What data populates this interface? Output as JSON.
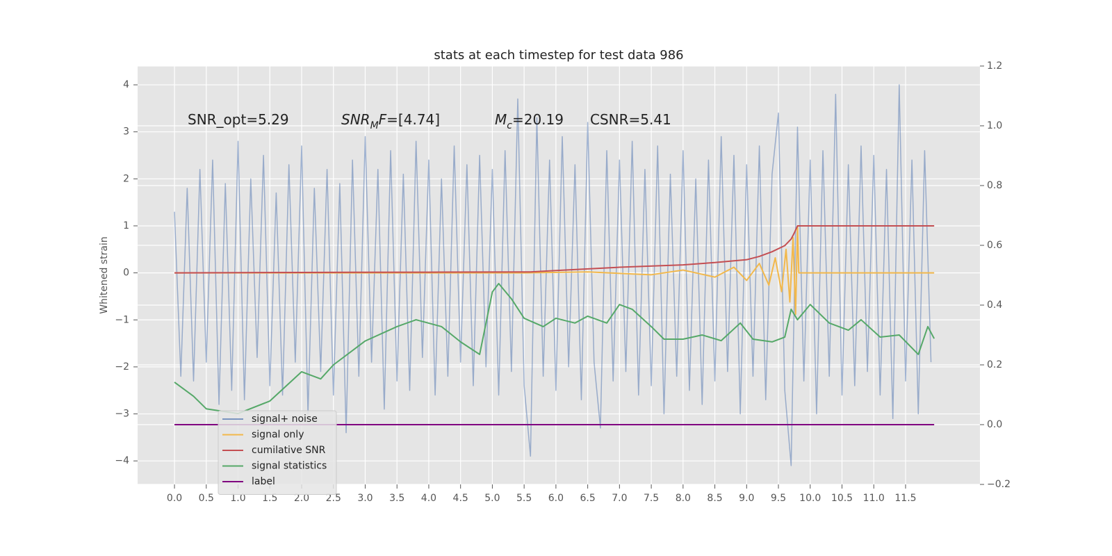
{
  "chart_data": {
    "type": "line",
    "title": "stats at each timestep for test data 986",
    "ylabel": "Whitened strain",
    "xlim": [
      -0.58,
      12.67
    ],
    "ylim": [
      -4.5,
      4.4
    ],
    "y2lim": [
      -0.2,
      1.2
    ],
    "grid": true,
    "legend": "lower left",
    "xticks": [
      {
        "value": 0,
        "label": "0.0"
      },
      0.5,
      {
        "value": 1,
        "label": "1.0"
      },
      1.5,
      {
        "value": 2,
        "label": "2.0"
      },
      2.5,
      {
        "value": 3,
        "label": "3.0"
      },
      3.5,
      {
        "value": 4,
        "label": "4.0"
      },
      4.5,
      {
        "value": 5,
        "label": "5.0"
      },
      5.5,
      {
        "value": 6,
        "label": "6.0"
      },
      6.5,
      {
        "value": 7,
        "label": "7.0"
      },
      7.5,
      {
        "value": 8,
        "label": "8.0"
      },
      8.5,
      {
        "value": 9,
        "label": "9.0"
      },
      9.5,
      {
        "value": 10,
        "label": "10.0"
      },
      10.5,
      {
        "value": 11,
        "label": "11.0"
      },
      11.5
    ],
    "yticks": [
      4,
      3,
      2,
      1,
      0,
      {
        "value": -1,
        "label": "−1"
      },
      {
        "value": -2,
        "label": "−2"
      },
      {
        "value": -3,
        "label": "−3"
      },
      {
        "value": -4,
        "label": "−4"
      }
    ],
    "y2ticks": [
      1.2,
      {
        "value": 1,
        "label": "1.0"
      },
      0.8,
      0.6,
      0.4,
      0.2,
      {
        "value": 0,
        "label": "0.0"
      },
      {
        "value": -0.2,
        "label": "−0.2"
      }
    ],
    "annotations": [
      {
        "parts": [
          {
            "text": "SNR_opt=5.29"
          }
        ]
      },
      {
        "parts": [
          {
            "text": "SNR",
            "italic": true
          },
          {
            "text": "M",
            "italic": true,
            "sub": true
          },
          {
            "text": "F",
            "italic": true
          },
          {
            "text": "=[4.74]"
          }
        ]
      },
      {
        "parts": [
          {
            "text": "M",
            "italic": true
          },
          {
            "text": "c",
            "italic": true,
            "sub": true
          },
          {
            "text": "=20.19"
          }
        ]
      },
      {
        "parts": [
          {
            "text": "CSNR=5.41"
          }
        ]
      }
    ],
    "series": [
      {
        "name": "signal+ noise",
        "color": "#4c72b0",
        "opacity": 0.5,
        "x": [
          0,
          0.1,
          0.2,
          0.3,
          0.4,
          0.5,
          0.6,
          0.7,
          0.8,
          0.9,
          1,
          1.1,
          1.2,
          1.3,
          1.4,
          1.5,
          1.6,
          1.7,
          1.8,
          1.9,
          2,
          2.1,
          2.2,
          2.3,
          2.4,
          2.5,
          2.6,
          2.7,
          2.8,
          2.9,
          3,
          3.1,
          3.2,
          3.3,
          3.4,
          3.5,
          3.6,
          3.7,
          3.8,
          3.9,
          4,
          4.1,
          4.2,
          4.3,
          4.4,
          4.5,
          4.6,
          4.7,
          4.8,
          4.9,
          5,
          5.1,
          5.2,
          5.3,
          5.4,
          5.5,
          5.6,
          5.7,
          5.8,
          5.9,
          6,
          6.1,
          6.2,
          6.3,
          6.4,
          6.5,
          6.6,
          6.7,
          6.8,
          6.9,
          7,
          7.1,
          7.2,
          7.3,
          7.4,
          7.5,
          7.6,
          7.7,
          7.8,
          7.9,
          8,
          8.1,
          8.2,
          8.3,
          8.4,
          8.5,
          8.6,
          8.7,
          8.8,
          8.9,
          9,
          9.1,
          9.2,
          9.3,
          9.4,
          9.5,
          9.6,
          9.7,
          9.8,
          9.9,
          10,
          10.1,
          10.2,
          10.3,
          10.4,
          10.5,
          10.6,
          10.7,
          10.8,
          10.9,
          11,
          11.1,
          11.2,
          11.3,
          11.4,
          11.5,
          11.6,
          11.7,
          11.8,
          11.9
        ],
        "values": [
          1.3,
          -2.2,
          1.8,
          -2.3,
          2.2,
          -1.9,
          2.4,
          -2.8,
          1.9,
          -2.5,
          2.8,
          -2.7,
          2.0,
          -1.8,
          2.5,
          -2.4,
          1.7,
          -2.6,
          2.3,
          -1.9,
          2.7,
          -3.0,
          1.8,
          -2.1,
          2.2,
          -2.6,
          1.9,
          -3.4,
          2.4,
          -2.2,
          2.9,
          -1.9,
          2.2,
          -2.9,
          2.6,
          -2.3,
          2.1,
          -2.5,
          2.8,
          -1.8,
          2.4,
          -2.6,
          2.0,
          -2.2,
          2.7,
          -1.9,
          2.3,
          -2.4,
          2.5,
          -2.0,
          2.2,
          -2.6,
          2.6,
          -2.1,
          3.7,
          -2.4,
          -3.9,
          3.3,
          -2.2,
          2.4,
          -2.5,
          2.9,
          -2.0,
          2.3,
          -2.7,
          3.2,
          -1.9,
          -3.3,
          2.6,
          -2.3,
          2.4,
          -2.1,
          2.8,
          -2.6,
          2.2,
          -2.4,
          2.7,
          -3.0,
          2.1,
          -2.2,
          2.6,
          -2.5,
          2.0,
          -2.8,
          2.4,
          -2.3,
          2.9,
          -2.1,
          2.5,
          -3.0,
          2.3,
          -2.2,
          2.7,
          -2.7,
          2.1,
          3.4,
          -2.5,
          -4.1,
          3.1,
          -2.3,
          2.4,
          -3.0,
          2.6,
          -2.2,
          3.8,
          -2.6,
          2.3,
          -2.4,
          2.7,
          -2.1,
          2.5,
          -2.6,
          2.2,
          -3.1,
          4.0,
          -2.3,
          2.4,
          -3.0,
          2.6,
          -1.9
        ]
      },
      {
        "name": "signal only",
        "color": "#f2b84b",
        "opacity": 1,
        "x": [
          0,
          5.5,
          6.5,
          7.5,
          8.0,
          8.5,
          8.8,
          9.0,
          9.2,
          9.35,
          9.45,
          9.55,
          9.62,
          9.68,
          9.73,
          9.77,
          9.8,
          9.82,
          11.95
        ],
        "values": [
          0,
          0,
          0.02,
          -0.04,
          0.06,
          -0.09,
          0.12,
          -0.16,
          0.2,
          -0.26,
          0.32,
          -0.4,
          0.5,
          -0.62,
          0.75,
          -0.88,
          1.0,
          0,
          0
        ]
      },
      {
        "name": "cumilative SNR",
        "color": "#c44e52",
        "opacity": 1,
        "x": [
          0,
          2,
          4,
          5.6,
          6,
          7,
          8,
          8.5,
          9,
          9.2,
          9.4,
          9.6,
          9.7,
          9.75,
          9.8,
          11.95
        ],
        "values": [
          0,
          0.01,
          0.015,
          0.02,
          0.05,
          0.12,
          0.17,
          0.22,
          0.28,
          0.35,
          0.45,
          0.58,
          0.72,
          0.85,
          1.0,
          1.0
        ]
      },
      {
        "name": "signal statistics",
        "color": "#55a868",
        "opacity": 1,
        "axis": "y2",
        "x": [
          0,
          0.3,
          0.5,
          1.0,
          1.5,
          2.0,
          2.3,
          2.5,
          3.0,
          3.5,
          3.8,
          4.2,
          4.5,
          4.8,
          5.0,
          5.1,
          5.3,
          5.5,
          5.8,
          6.0,
          6.3,
          6.5,
          6.8,
          7.0,
          7.2,
          7.5,
          7.7,
          8.0,
          8.3,
          8.6,
          8.9,
          9.1,
          9.4,
          9.6,
          9.7,
          9.8,
          10.0,
          10.3,
          10.6,
          10.8,
          11.1,
          11.4,
          11.7,
          11.85,
          11.95
        ],
        "values": [
          0.142,
          0.095,
          0.053,
          0.037,
          0.079,
          0.177,
          0.153,
          0.2,
          0.28,
          0.328,
          0.351,
          0.328,
          0.277,
          0.235,
          0.444,
          0.472,
          0.421,
          0.356,
          0.328,
          0.356,
          0.34,
          0.363,
          0.34,
          0.402,
          0.386,
          0.328,
          0.286,
          0.286,
          0.3,
          0.281,
          0.34,
          0.286,
          0.277,
          0.293,
          0.386,
          0.351,
          0.402,
          0.34,
          0.316,
          0.351,
          0.293,
          0.3,
          0.235,
          0.328,
          0.288
        ]
      },
      {
        "name": "label",
        "color": "#800080",
        "opacity": 1,
        "axis": "y2",
        "x": [
          0,
          11.95
        ],
        "values": [
          0,
          0
        ]
      }
    ]
  }
}
